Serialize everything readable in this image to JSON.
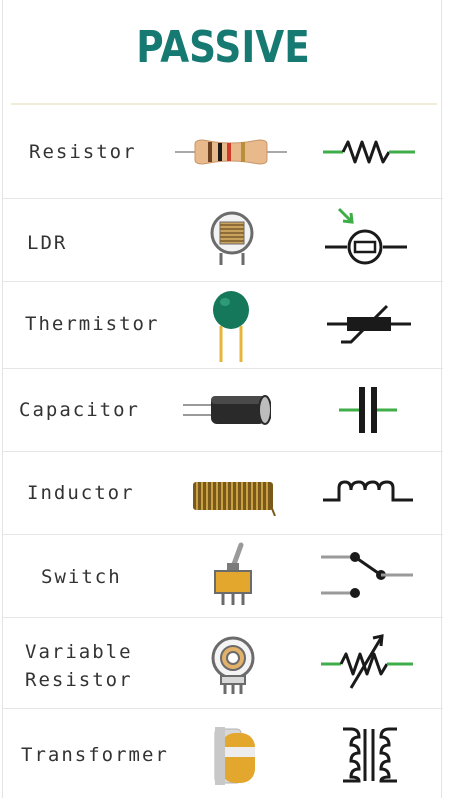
{
  "title": "PASSIVE",
  "rows": [
    {
      "label": "Resistor",
      "picture_icon": "resistor-component-icon",
      "symbol_icon": "resistor-symbol-icon"
    },
    {
      "label": "LDR",
      "picture_icon": "ldr-component-icon",
      "symbol_icon": "ldr-symbol-icon"
    },
    {
      "label": "Thermistor",
      "picture_icon": "thermistor-component-icon",
      "symbol_icon": "thermistor-symbol-icon"
    },
    {
      "label": "Capacitor",
      "picture_icon": "capacitor-component-icon",
      "symbol_icon": "capacitor-symbol-icon"
    },
    {
      "label": "Inductor",
      "picture_icon": "inductor-component-icon",
      "symbol_icon": "inductor-symbol-icon"
    },
    {
      "label": "Switch",
      "picture_icon": "switch-component-icon",
      "symbol_icon": "switch-symbol-icon"
    },
    {
      "label_line1": "Variable",
      "label_line2": "Resistor",
      "picture_icon": "potentiometer-component-icon",
      "symbol_icon": "variable-resistor-symbol-icon"
    },
    {
      "label": "Transformer",
      "picture_icon": "transformer-component-icon",
      "symbol_icon": "transformer-symbol-icon"
    }
  ],
  "colors": {
    "title": "#167a72",
    "wire_green": "#3fae49",
    "symbol_black": "#1a1a1a",
    "label_text": "#333333"
  }
}
